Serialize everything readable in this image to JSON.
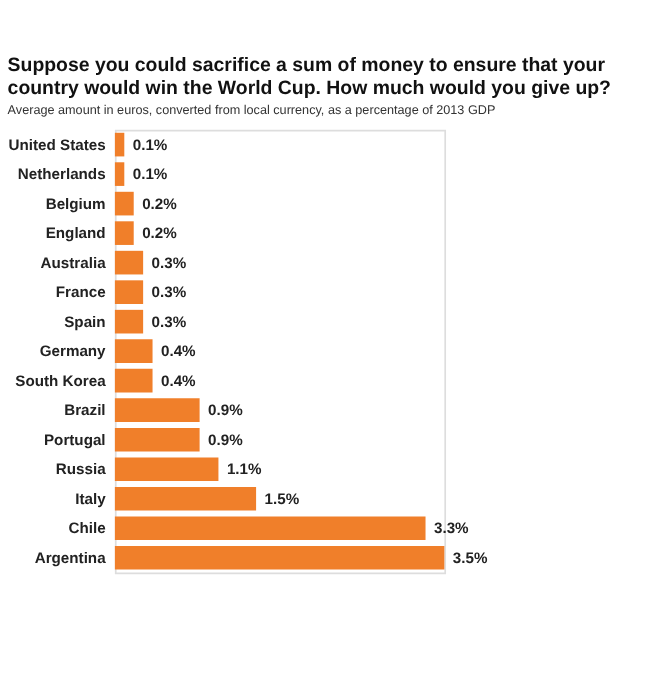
{
  "chart_data": {
    "type": "bar",
    "orientation": "horizontal",
    "title": "Suppose you could sacrifice a sum of money to ensure that your country would win the World Cup. How much would you give up?",
    "subtitle": "Average amount in euros, converted from local currency, as a percentage of 2013 GDP",
    "categories": [
      "United States",
      "Netherlands",
      "Belgium",
      "England",
      "Australia",
      "France",
      "Spain",
      "Germany",
      "South Korea",
      "Brazil",
      "Portugal",
      "Russia",
      "Italy",
      "Chile",
      "Argentina"
    ],
    "values": [
      0.1,
      0.1,
      0.2,
      0.2,
      0.3,
      0.3,
      0.3,
      0.4,
      0.4,
      0.9,
      0.9,
      1.1,
      1.5,
      3.3,
      3.5
    ],
    "value_labels": [
      "0.1%",
      "0.1%",
      "0.2%",
      "0.2%",
      "0.3%",
      "0.3%",
      "0.3%",
      "0.4%",
      "0.4%",
      "0.9%",
      "0.9%",
      "1.1%",
      "1.5%",
      "3.3%",
      "3.5%"
    ],
    "color": "#f07f2a"
  }
}
